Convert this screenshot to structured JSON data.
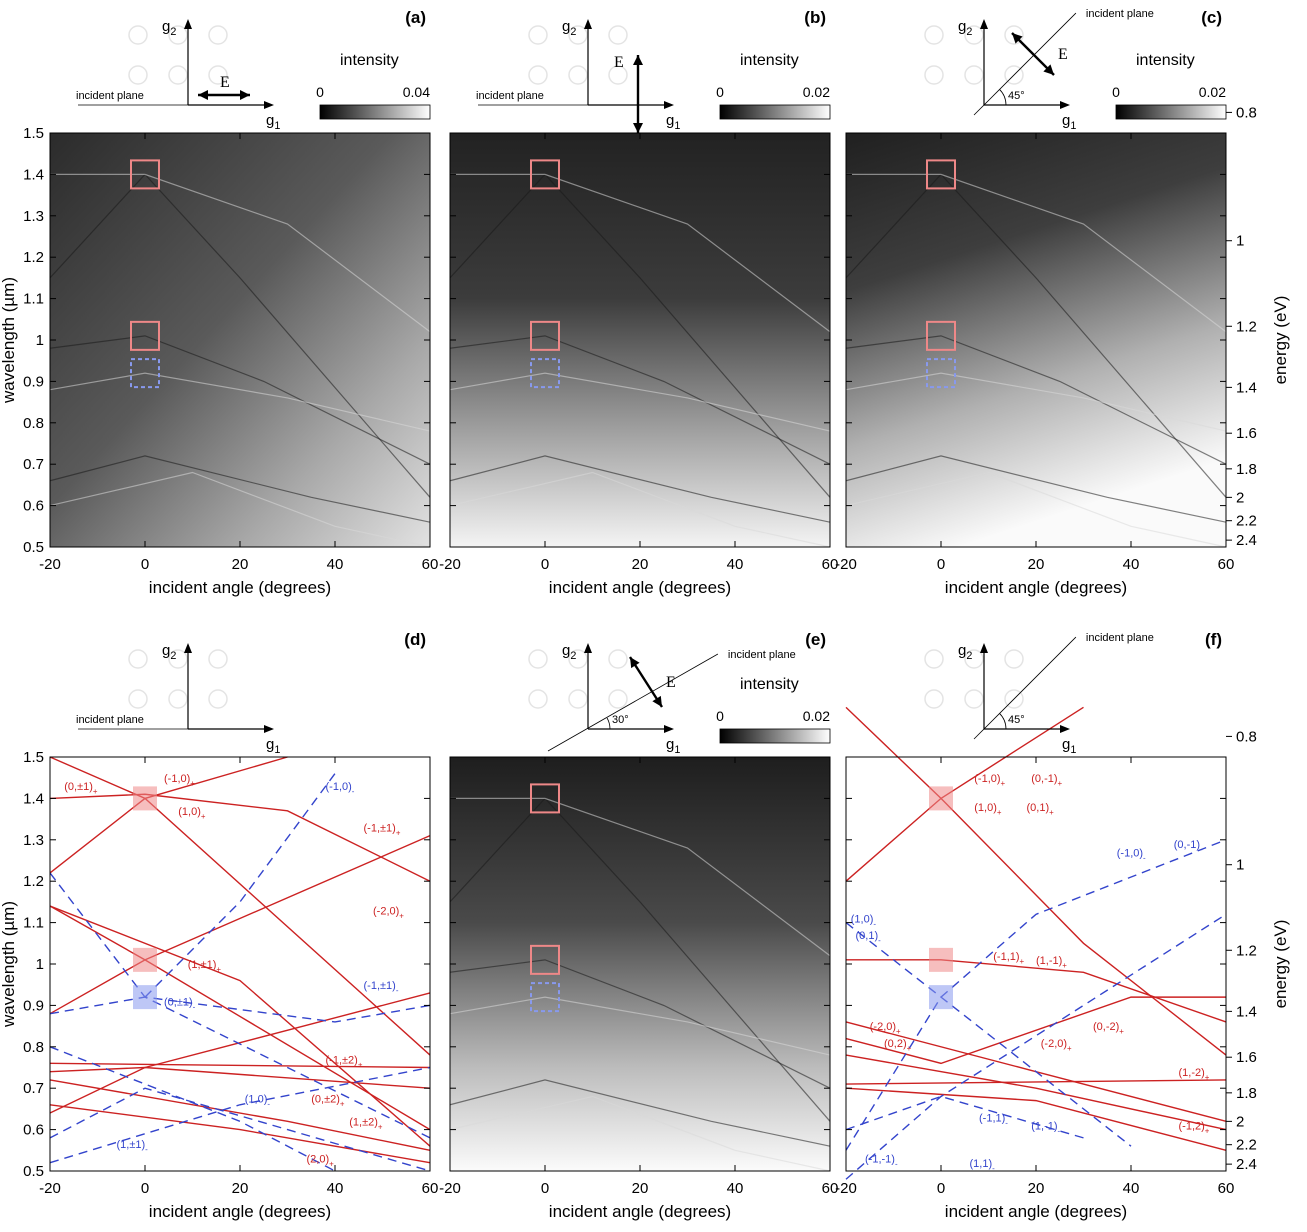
{
  "colors": {
    "te_mode": "#cc2222",
    "tm_mode": "#3344cc",
    "highlight_red": "#ee8888",
    "highlight_blue": "#8899ee",
    "axis": "#000000"
  },
  "common": {
    "xlabel": "incident angle (degrees)",
    "ylabel": "wavelength (µm)",
    "y2label": "energy (eV)",
    "incident_plane_label": "incident plane",
    "intensity_label": "intensity",
    "g1": "g",
    "g1_sub": "1",
    "g2": "g",
    "g2_sub": "2",
    "efield": "E",
    "angle45": "45°",
    "angle30": "30°"
  },
  "chart_data": [
    {
      "id": "a",
      "panel_label": "(a)",
      "type": "heatmap",
      "title": "",
      "xlabel": "incident angle (degrees)",
      "ylabel": "wavelength (µm)",
      "xlim": [
        -20,
        60
      ],
      "ylim": [
        0.5,
        1.5
      ],
      "xticks": [
        "-20",
        "0",
        "20",
        "40",
        "60"
      ],
      "yticks": [
        "0.5",
        "0.6",
        "0.7",
        "0.8",
        "0.9",
        "1",
        "1.1",
        "1.2",
        "1.3",
        "1.4",
        "1.5"
      ],
      "colorbar": {
        "label": "intensity",
        "min": "0",
        "max": "0.04"
      },
      "polarization": "E parallel to incident plane (along g1)",
      "highlight_boxes": [
        {
          "x": 0,
          "y": 1.4,
          "color": "red"
        },
        {
          "x": 0,
          "y": 1.01,
          "color": "red"
        },
        {
          "x": 0,
          "y": 0.92,
          "color": "blue"
        }
      ]
    },
    {
      "id": "b",
      "panel_label": "(b)",
      "type": "heatmap",
      "xlim": [
        -20,
        60
      ],
      "ylim": [
        0.5,
        1.5
      ],
      "xticks": [
        "-20",
        "0",
        "20",
        "40",
        "60"
      ],
      "xlabel": "incident angle (degrees)",
      "colorbar": {
        "label": "intensity",
        "min": "0",
        "max": "0.02"
      },
      "polarization": "E perpendicular to incident plane (along g2)",
      "highlight_boxes": [
        {
          "x": 0,
          "y": 1.4,
          "color": "red"
        },
        {
          "x": 0,
          "y": 1.01,
          "color": "red"
        },
        {
          "x": 0,
          "y": 0.92,
          "color": "blue"
        }
      ]
    },
    {
      "id": "c",
      "panel_label": "(c)",
      "type": "heatmap",
      "xlim": [
        -20,
        60
      ],
      "ylim": [
        0.5,
        1.5
      ],
      "xticks": [
        "-20",
        "0",
        "20",
        "40",
        "60"
      ],
      "xlabel": "incident angle (degrees)",
      "y2label": "energy (eV)",
      "y2ticks": [
        "0.8",
        "1",
        "1.2",
        "1.4",
        "1.6",
        "1.8",
        "2",
        "2.2",
        "2.4"
      ],
      "colorbar": {
        "label": "intensity",
        "min": "0",
        "max": "0.02"
      },
      "polarization": "E at 45°, incident plane at 45°",
      "highlight_boxes": [
        {
          "x": 0,
          "y": 1.4,
          "color": "red"
        },
        {
          "x": 0,
          "y": 1.01,
          "color": "red"
        },
        {
          "x": 0,
          "y": 0.92,
          "color": "blue"
        }
      ]
    },
    {
      "id": "d",
      "panel_label": "(d)",
      "type": "line",
      "xlim": [
        -20,
        60
      ],
      "ylim": [
        0.5,
        1.5
      ],
      "xticks": [
        "-20",
        "0",
        "20",
        "40",
        "60"
      ],
      "yticks": [
        "0.5",
        "0.6",
        "0.7",
        "0.8",
        "0.9",
        "1",
        "1.1",
        "1.2",
        "1.3",
        "1.4",
        "1.5"
      ],
      "xlabel": "incident angle (degrees)",
      "ylabel": "wavelength (µm)",
      "mode_labels": [
        {
          "text": "(0,±1)",
          "sub": "+",
          "x": -17,
          "y": 1.42,
          "color": "red"
        },
        {
          "text": "(-1,0)",
          "sub": "+",
          "x": 4,
          "y": 1.44,
          "color": "red"
        },
        {
          "text": "(1,0)",
          "sub": "+",
          "x": 7,
          "y": 1.36,
          "color": "red"
        },
        {
          "text": "(-1,0)",
          "sub": "-",
          "x": 38,
          "y": 1.42,
          "color": "blue"
        },
        {
          "text": "(-1,±1)",
          "sub": "+",
          "x": 46,
          "y": 1.32,
          "color": "red"
        },
        {
          "text": "(-2,0)",
          "sub": "+",
          "x": 48,
          "y": 1.12,
          "color": "red"
        },
        {
          "text": "(1,±1)",
          "sub": "+",
          "x": 9,
          "y": 0.99,
          "color": "red"
        },
        {
          "text": "(0,±1)",
          "sub": "-",
          "x": 4,
          "y": 0.9,
          "color": "blue"
        },
        {
          "text": "(-1,±1)",
          "sub": "-",
          "x": 46,
          "y": 0.94,
          "color": "blue"
        },
        {
          "text": "(-1,±2)",
          "sub": "+",
          "x": 38,
          "y": 0.76,
          "color": "red"
        },
        {
          "text": "(1,0)",
          "sub": "-",
          "x": 21,
          "y": 0.665,
          "color": "blue"
        },
        {
          "text": "(0,±2)",
          "sub": "+",
          "x": 35,
          "y": 0.665,
          "color": "red"
        },
        {
          "text": "(1,±2)",
          "sub": "+",
          "x": 43,
          "y": 0.61,
          "color": "red"
        },
        {
          "text": "(1,±1)",
          "sub": "-",
          "x": -6,
          "y": 0.555,
          "color": "blue"
        },
        {
          "text": "(2,0)",
          "sub": "+",
          "x": 34,
          "y": 0.52,
          "color": "red"
        }
      ]
    },
    {
      "id": "e",
      "panel_label": "(e)",
      "type": "heatmap",
      "xlim": [
        -20,
        60
      ],
      "ylim": [
        0.5,
        1.5
      ],
      "xticks": [
        "-20",
        "0",
        "20",
        "40",
        "60"
      ],
      "xlabel": "incident angle (degrees)",
      "colorbar": {
        "label": "intensity",
        "min": "0",
        "max": "0.02"
      },
      "polarization": "E at 30° incident plane",
      "highlight_boxes": [
        {
          "x": 0,
          "y": 1.4,
          "color": "red"
        },
        {
          "x": 0,
          "y": 1.01,
          "color": "red"
        },
        {
          "x": 0,
          "y": 0.92,
          "color": "blue"
        }
      ]
    },
    {
      "id": "f",
      "panel_label": "(f)",
      "type": "line",
      "xlim": [
        -20,
        60
      ],
      "ylim": [
        0.5,
        1.5
      ],
      "xticks": [
        "-20",
        "0",
        "20",
        "40",
        "60"
      ],
      "xlabel": "incident angle (degrees)",
      "y2label": "energy (eV)",
      "y2ticks": [
        "0.8",
        "1",
        "1.2",
        "1.4",
        "1.6",
        "1.8",
        "2",
        "2.2",
        "2.4"
      ],
      "mode_labels": [
        {
          "text": "(-1,0)",
          "sub": "+",
          "x": 7,
          "y": 1.44,
          "color": "red"
        },
        {
          "text": "(0,-1)",
          "sub": "+",
          "x": 19,
          "y": 1.44,
          "color": "red"
        },
        {
          "text": "(1,0)",
          "sub": "+",
          "x": 7,
          "y": 1.37,
          "color": "red"
        },
        {
          "text": "(0,1)",
          "sub": "+",
          "x": 18,
          "y": 1.37,
          "color": "red"
        },
        {
          "text": "(-1,0)",
          "sub": "-",
          "x": 37,
          "y": 1.26,
          "color": "blue"
        },
        {
          "text": "(0,-1)",
          "sub": "-",
          "x": 49,
          "y": 1.28,
          "color": "blue"
        },
        {
          "text": "(1,0)",
          "sub": "-",
          "x": -19,
          "y": 1.1,
          "color": "blue"
        },
        {
          "text": "(0,1)",
          "sub": "-",
          "x": -18,
          "y": 1.06,
          "color": "blue"
        },
        {
          "text": "(-1,1)",
          "sub": "+",
          "x": 11,
          "y": 1.01,
          "color": "red"
        },
        {
          "text": "(1,-1)",
          "sub": "+",
          "x": 20,
          "y": 1.0,
          "color": "red"
        },
        {
          "text": "(-2,0)",
          "sub": "+",
          "x": -15,
          "y": 0.84,
          "color": "red"
        },
        {
          "text": "(0,-2)",
          "sub": "+",
          "x": 32,
          "y": 0.84,
          "color": "red"
        },
        {
          "text": "(0,2)",
          "sub": "+",
          "x": -12,
          "y": 0.8,
          "color": "red"
        },
        {
          "text": "(-2,0)",
          "sub": "+",
          "x": 21,
          "y": 0.8,
          "color": "red"
        },
        {
          "text": "(1,-2)",
          "sub": "+",
          "x": 50,
          "y": 0.73,
          "color": "red"
        },
        {
          "text": "(-1,1)",
          "sub": "-",
          "x": 8,
          "y": 0.62,
          "color": "blue"
        },
        {
          "text": "(1,-1)",
          "sub": "-",
          "x": 19,
          "y": 0.6,
          "color": "blue"
        },
        {
          "text": "(-1,2)",
          "sub": "+",
          "x": 50,
          "y": 0.6,
          "color": "red"
        },
        {
          "text": "(-1,-1)",
          "sub": "-",
          "x": -16,
          "y": 0.52,
          "color": "blue"
        },
        {
          "text": "(1,1)",
          "sub": "-",
          "x": 6,
          "y": 0.51,
          "color": "blue"
        }
      ]
    }
  ]
}
